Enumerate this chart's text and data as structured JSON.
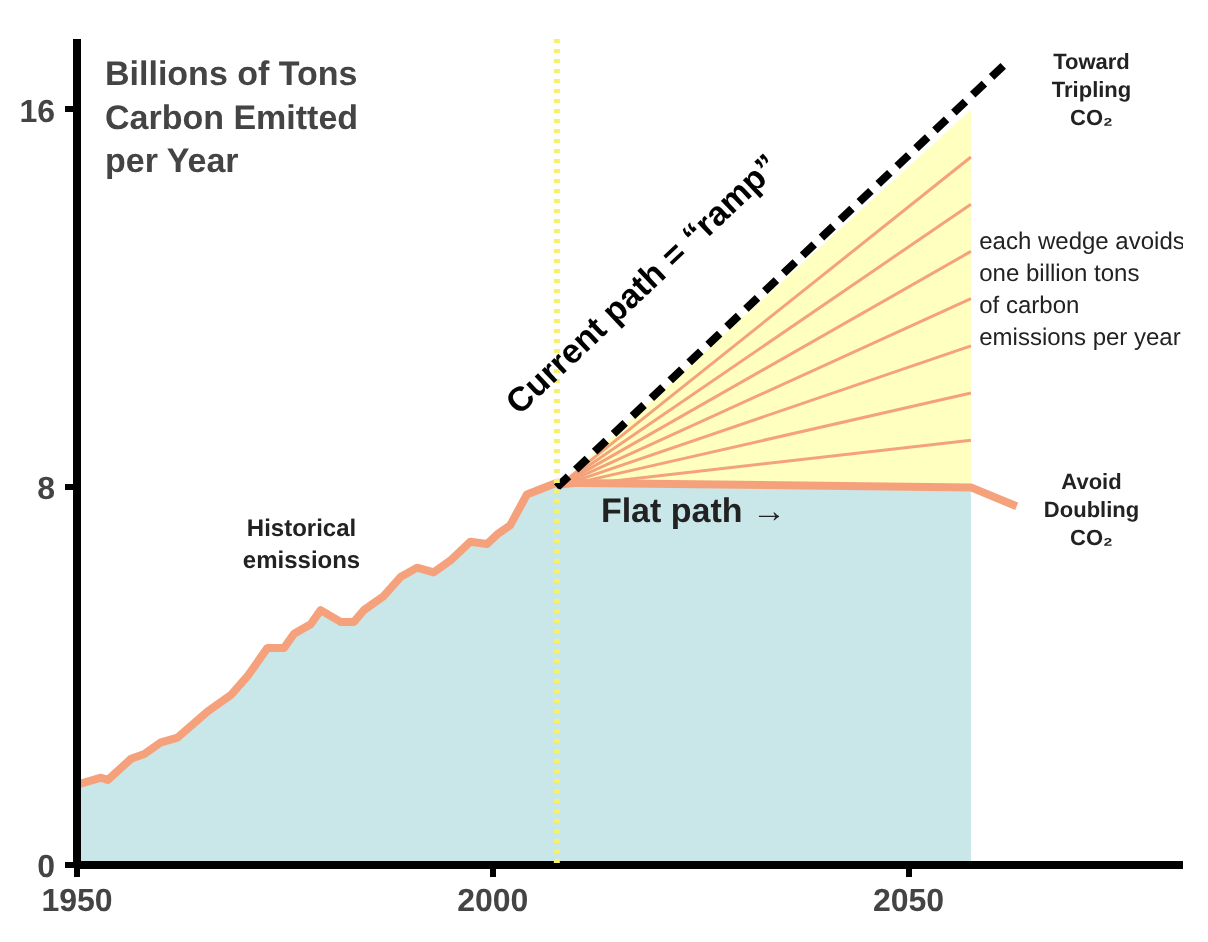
{
  "chart_data": {
    "type": "area",
    "title": "Billions of Tons Carbon Emitted per Year",
    "xlim": [
      1950,
      2083
    ],
    "ylim": [
      0,
      17.5
    ],
    "xticks": [
      1950,
      2000,
      2050
    ],
    "yticks": [
      0,
      8,
      16
    ],
    "grid": false,
    "series": [
      {
        "color": "#ffffc0",
        "x": [
          2009.5,
          2057.5
        ],
        "values": [
          8.3,
          16
        ]
      },
      {
        "color": "#c9e6e9",
        "x": [
          1950,
          1952.9,
          1953.7,
          1956.5,
          1958.1,
          1960.1,
          1962.1,
          1965.7,
          1968.5,
          1970.5,
          1972.9,
          1974.9,
          1976.1,
          1978.1,
          1979.3,
          1981.7,
          1983.3,
          1984.5,
          1986.9,
          1988.9,
          1990.9,
          1992.9,
          1994.9,
          1997.3,
          1999.3,
          2000.5,
          2002.1,
          2004.1,
          2007.7,
          2057.5
        ],
        "values": [
          1.7,
          1.85,
          1.8,
          2.25,
          2.35,
          2.6,
          2.7,
          3.25,
          3.6,
          4.0,
          4.6,
          4.6,
          4.9,
          5.1,
          5.4,
          5.15,
          5.15,
          5.4,
          5.7,
          6.1,
          6.3,
          6.2,
          6.45,
          6.85,
          6.8,
          7.0,
          7.2,
          7.85,
          8.1,
          8
        ]
      },
      {
        "type": "line",
        "color": "#f5a27c",
        "x": [
          2007.7,
          2057.5
        ],
        "values": [
          8,
          15
        ]
      },
      {
        "type": "line",
        "color": "#f5a27c",
        "x": [
          2007.7,
          2057.5
        ],
        "values": [
          8,
          14
        ]
      },
      {
        "type": "line",
        "color": "#f5a27c",
        "x": [
          2007.7,
          2057.5
        ],
        "values": [
          8,
          13
        ]
      },
      {
        "type": "line",
        "color": "#f5a27c",
        "x": [
          2007.7,
          2057.5
        ],
        "values": [
          8,
          12
        ]
      },
      {
        "type": "line",
        "color": "#f5a27c",
        "x": [
          2007.7,
          2057.5
        ],
        "values": [
          8,
          11
        ]
      },
      {
        "type": "line",
        "color": "#f5a27c",
        "x": [
          2007.7,
          2057.5
        ],
        "values": [
          8,
          10
        ]
      },
      {
        "type": "line",
        "color": "#f5a27c",
        "x": [
          2007.7,
          2057.5
        ],
        "values": [
          8,
          9
        ]
      },
      {
        "type": "line",
        "color": "#f5a27c",
        "x": [
          1950,
          1952.9,
          1953.7,
          1956.5,
          1958.1,
          1960.1,
          1962.1,
          1965.7,
          1968.5,
          1970.5,
          1972.9,
          1974.9,
          1976.1,
          1978.1,
          1979.3,
          1981.7,
          1983.3,
          1984.5,
          1986.9,
          1988.9,
          1990.9,
          1992.9,
          1994.9,
          1997.3,
          1999.3,
          2000.5,
          2002.1,
          2004.1,
          2007.7,
          2057.5,
          2063
        ],
        "values": [
          1.7,
          1.85,
          1.8,
          2.25,
          2.35,
          2.6,
          2.7,
          3.25,
          3.6,
          4.0,
          4.6,
          4.6,
          4.9,
          5.1,
          5.4,
          5.15,
          5.15,
          5.4,
          5.7,
          6.1,
          6.3,
          6.2,
          6.45,
          6.85,
          6.8,
          7.0,
          7.2,
          7.85,
          8.1,
          8,
          7.6
        ]
      },
      {
        "type": "line",
        "color": "#000000",
        "line_style": "dashed",
        "x": [
          2007.7,
          2061.8
        ],
        "values": [
          8,
          17
        ]
      }
    ],
    "ref_lines": [
      {
        "axis": "x",
        "value": 2007.7,
        "color": "#f5f06e",
        "line_style": "dotted"
      }
    ],
    "annotations": [
      "Historical emissions",
      "Current path = “ramp”",
      "Flat path →",
      "each wedge avoids one billion tons of carbon emissions per year",
      "Toward Tripling CO₂",
      "Avoid Doubling CO₂"
    ]
  }
}
